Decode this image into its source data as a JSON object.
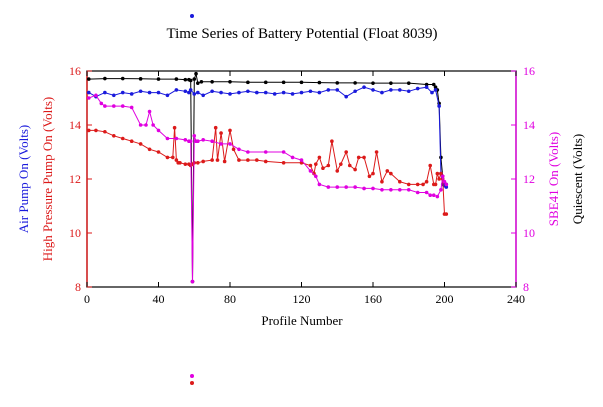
{
  "chart_data": {
    "type": "line",
    "title": "Time Series of Battery Potential (Float 8039)",
    "xlabel": "Profile Number",
    "xlim": [
      0,
      240
    ],
    "xticks": [
      0,
      40,
      80,
      120,
      160,
      200,
      240
    ],
    "left_axis": {
      "ylim": [
        8,
        16
      ],
      "ticks": [
        8,
        10,
        12,
        14,
        16
      ],
      "labels": [
        "Air Pump On (Volts)",
        "High Pressure Pump On (Volts)"
      ],
      "label_colors": [
        "#1a1adc",
        "#dc1a1a"
      ],
      "tick_color": "#dc1a1a"
    },
    "right_axis": {
      "ylim": [
        8,
        16
      ],
      "ticks": [
        8,
        10,
        12,
        14,
        16
      ],
      "labels": [
        "SBE41 On (Volts)",
        "Quiescent (Volts)"
      ],
      "label_colors": [
        "#e000e0",
        "#000000"
      ],
      "tick_color": "#e000e0"
    },
    "series": [
      {
        "color": "#000000",
        "axis": "right",
        "x": [
          1,
          10,
          20,
          30,
          40,
          50,
          55,
          57,
          58,
          59,
          60,
          61,
          62,
          64,
          70,
          80,
          90,
          100,
          110,
          120,
          130,
          140,
          150,
          160,
          170,
          180,
          190,
          194,
          195,
          196,
          197,
          198,
          199,
          200,
          201
        ],
        "y": [
          15.7,
          15.72,
          15.72,
          15.71,
          15.7,
          15.7,
          15.68,
          15.68,
          15.65,
          8.2,
          15.7,
          15.9,
          15.55,
          15.6,
          15.6,
          15.6,
          15.58,
          15.58,
          15.58,
          15.58,
          15.57,
          15.56,
          15.56,
          15.55,
          15.55,
          15.55,
          15.5,
          15.5,
          15.4,
          15.3,
          14.8,
          12.8,
          12.1,
          11.8,
          11.8
        ]
      },
      {
        "color": "#1a1adc",
        "axis": "left",
        "x": [
          1,
          5,
          10,
          15,
          20,
          25,
          30,
          35,
          40,
          45,
          50,
          55,
          57,
          58,
          60,
          62,
          65,
          70,
          75,
          80,
          85,
          90,
          95,
          100,
          105,
          110,
          115,
          120,
          125,
          130,
          135,
          140,
          145,
          150,
          155,
          160,
          165,
          170,
          175,
          180,
          185,
          190,
          193,
          195,
          197,
          198,
          199,
          200,
          201
        ],
        "y": [
          15.2,
          15.05,
          15.2,
          15.1,
          15.2,
          15.15,
          15.25,
          15.2,
          15.2,
          15.1,
          15.3,
          15.25,
          15.2,
          15.3,
          15.15,
          15.2,
          15.1,
          15.25,
          15.2,
          15.15,
          15.2,
          15.25,
          15.2,
          15.2,
          15.15,
          15.2,
          15.15,
          15.2,
          15.25,
          15.2,
          15.3,
          15.3,
          15.05,
          15.25,
          15.4,
          15.3,
          15.2,
          15.3,
          15.3,
          15.25,
          15.35,
          15.4,
          15.2,
          15.3,
          14.7,
          12.2,
          11.8,
          11.75,
          11.7
        ]
      },
      {
        "color": "#dc1a1a",
        "axis": "left",
        "x": [
          1,
          5,
          10,
          15,
          20,
          25,
          30,
          35,
          40,
          45,
          48,
          49,
          50,
          51,
          52,
          55,
          57,
          58,
          59,
          60,
          62,
          65,
          70,
          72,
          73,
          75,
          77,
          80,
          82,
          85,
          90,
          95,
          100,
          110,
          120,
          125,
          127,
          128,
          130,
          132,
          135,
          137,
          140,
          142,
          145,
          147,
          150,
          152,
          155,
          158,
          160,
          162,
          165,
          168,
          170,
          175,
          180,
          185,
          188,
          190,
          192,
          194,
          195,
          196,
          197,
          198,
          199,
          200,
          201
        ],
        "y": [
          13.8,
          13.8,
          13.75,
          13.6,
          13.5,
          13.4,
          13.3,
          13.1,
          13.0,
          12.8,
          12.8,
          13.9,
          12.7,
          12.6,
          12.6,
          12.55,
          12.55,
          12.5,
          12.55,
          12.6,
          12.6,
          12.65,
          12.7,
          13.9,
          12.7,
          13.7,
          12.65,
          13.8,
          13.1,
          12.7,
          12.7,
          12.7,
          12.65,
          12.6,
          12.6,
          12.5,
          12.2,
          12.55,
          12.8,
          12.4,
          12.5,
          13.4,
          12.3,
          12.55,
          13.0,
          12.5,
          12.35,
          12.8,
          12.8,
          12.1,
          12.2,
          13.0,
          11.9,
          12.3,
          12.2,
          11.9,
          11.8,
          11.8,
          11.8,
          11.9,
          12.5,
          11.8,
          11.8,
          12.2,
          12.0,
          12.2,
          12.0,
          10.7,
          10.7
        ]
      },
      {
        "color": "#e000e0",
        "axis": "right",
        "x": [
          1,
          5,
          8,
          10,
          15,
          20,
          25,
          30,
          33,
          35,
          37,
          40,
          45,
          50,
          55,
          57,
          58,
          59,
          60,
          61,
          62,
          65,
          70,
          75,
          80,
          85,
          90,
          100,
          110,
          115,
          120,
          125,
          128,
          130,
          135,
          140,
          145,
          150,
          155,
          160,
          165,
          170,
          175,
          180,
          185,
          190,
          192,
          194,
          196,
          198,
          199,
          200,
          201
        ],
        "y": [
          15.0,
          15.1,
          14.8,
          14.7,
          14.7,
          14.7,
          14.65,
          14.0,
          14.0,
          14.5,
          14.0,
          13.8,
          13.5,
          13.5,
          13.45,
          13.4,
          13.4,
          8.2,
          13.6,
          13.4,
          13.4,
          13.45,
          13.4,
          13.3,
          13.3,
          13.1,
          13.0,
          13.0,
          13.0,
          12.8,
          12.7,
          12.3,
          12.1,
          11.8,
          11.7,
          11.7,
          11.7,
          11.7,
          11.65,
          11.65,
          11.6,
          11.6,
          11.6,
          11.6,
          11.5,
          11.5,
          11.4,
          11.4,
          11.35,
          11.6,
          12.1,
          11.9,
          11.8
        ]
      }
    ],
    "outside_markers": [
      {
        "position": "top",
        "colors": [
          "#1a1adc"
        ]
      },
      {
        "position": "bottom",
        "colors": [
          "#e000e0",
          "#dc1a1a"
        ]
      }
    ]
  }
}
